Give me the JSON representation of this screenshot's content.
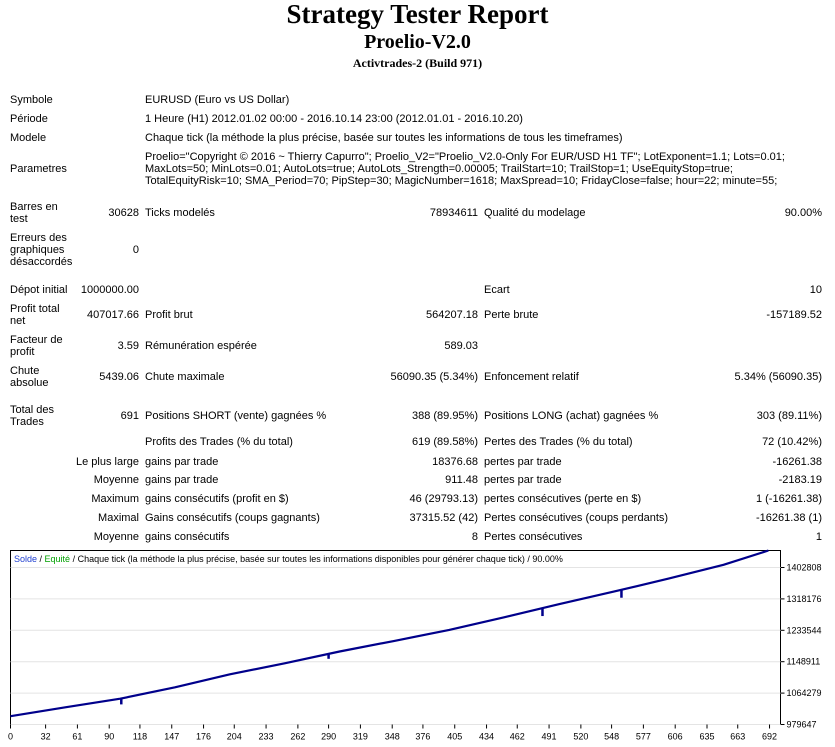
{
  "report": {
    "title": "Strategy Tester Report",
    "expert": "Proelio-V2.0",
    "server": "Activtrades-2 (Build 971)"
  },
  "rows": {
    "symbol": {
      "label": "Symbole",
      "value": "EURUSD (Euro vs US Dollar)"
    },
    "period": {
      "label": "Période",
      "value": "1 Heure (H1) 2012.01.02 00:00 - 2016.10.14 23:00 (2012.01.01 - 2016.10.20)"
    },
    "model": {
      "label": "Modele",
      "value": "Chaque tick (la méthode la plus précise, basée sur toutes les informations de tous les timeframes)"
    },
    "params": {
      "label": "Parametres",
      "value": "Proelio=\"Copyright © 2016 ~ Thierry Capurro\"; Proelio_V2=\"Proelio_V2.0-Only For EUR/USD H1 TF\"; LotExponent=1.1; Lots=0.01; MaxLots=50; MinLots=0.01; AutoLots=true; AutoLots_Strength=0.00005; TrailStart=10; TrailStop=1; UseEquityStop=true; TotalEquityRisk=10; SMA_Period=70; PipStep=30; MagicNumber=1618; MaxSpread=10; FridayClose=false; hour=22; minute=55;"
    },
    "bars": {
      "label": "Barres en test",
      "value": "30628"
    },
    "ticks": {
      "label": "Ticks modelés",
      "value": "78934611"
    },
    "quality": {
      "label": "Qualité du modelage",
      "value": "90.00%"
    },
    "mismatch": {
      "label": "Erreurs des graphiques désaccordés",
      "value": "0"
    },
    "deposit": {
      "label": "Dépot initial",
      "value": "1000000.00"
    },
    "spread": {
      "label": "Ecart",
      "value": "10"
    },
    "net_profit": {
      "label": "Profit total net",
      "value": "407017.66"
    },
    "gross_profit": {
      "label": "Profit brut",
      "value": "564207.18"
    },
    "gross_loss": {
      "label": "Perte brute",
      "value": "-157189.52"
    },
    "profit_factor": {
      "label": "Facteur de profit",
      "value": "3.59"
    },
    "expected_payoff": {
      "label": "Rémunération espérée",
      "value": "589.03"
    },
    "abs_drawdown": {
      "label": "Chute absolue",
      "value": "5439.06"
    },
    "max_drawdown": {
      "label": "Chute maximale",
      "value": "56090.35 (5.34%)"
    },
    "rel_drawdown": {
      "label": "Enfoncement relatif",
      "value": "5.34% (56090.35)"
    },
    "total_trades": {
      "label": "Total des Trades",
      "value": "691"
    },
    "short_pos": {
      "label": "Positions SHORT (vente) gagnées %",
      "value": "388 (89.95%)"
    },
    "long_pos": {
      "label": "Positions LONG (achat) gagnées %",
      "value": "303 (89.11%)"
    },
    "profit_trades": {
      "label": "Profits des Trades (% du total)",
      "value": "619 (89.58%)"
    },
    "loss_trades": {
      "label": "Pertes des Trades (% du total)",
      "value": "72 (10.42%)"
    },
    "largest": {
      "label": "Le plus large",
      "mid_label": "gains par trade",
      "mid_value": "18376.68",
      "right_label": "pertes par trade",
      "right_value": "-16261.38"
    },
    "average": {
      "label": "Moyenne",
      "mid_label": "gains par trade",
      "mid_value": "911.48",
      "right_label": "pertes par trade",
      "right_value": "-2183.19"
    },
    "maximum": {
      "label": "Maximum",
      "mid_label": "gains consécutifs (profit en $)",
      "mid_value": "46 (29793.13)",
      "right_label": "pertes consécutives (perte en $)",
      "right_value": "1 (-16261.38)"
    },
    "maximal": {
      "label": "Maximal",
      "mid_label": "Gains consécutifs (coups gagnants)",
      "mid_value": "37315.52 (42)",
      "right_label": "Pertes consécutives (coups perdants)",
      "right_value": "-16261.38 (1)"
    },
    "average2": {
      "label": "Moyenne",
      "mid_label": "gains consécutifs",
      "mid_value": "8",
      "right_label": "Pertes consécutives",
      "right_value": "1"
    }
  },
  "chart_legend": {
    "balance": "Solde",
    "sep": " / ",
    "equity": "Equité",
    "desc": " / Chaque tick (la méthode la plus précise, basée sur toutes les informations disponibles pour générer chaque tick) / 90.00%"
  },
  "chart_data": {
    "type": "line",
    "title": "",
    "x_ticks": [
      "0",
      "32",
      "61",
      "90",
      "118",
      "147",
      "176",
      "204",
      "233",
      "262",
      "290",
      "319",
      "348",
      "376",
      "405",
      "434",
      "462",
      "491",
      "520",
      "548",
      "577",
      "606",
      "635",
      "663",
      "692"
    ],
    "y_ticks": [
      "1402808",
      "1318176",
      "1233544",
      "1148911",
      "1064279",
      "979647"
    ],
    "xlim": [
      0,
      702
    ],
    "ylim": [
      979647,
      1407000
    ],
    "series": [
      {
        "name": "Solde",
        "color": "#00008b",
        "x": [
          0,
          50,
          100,
          150,
          200,
          250,
          300,
          350,
          400,
          450,
          500,
          550,
          600,
          650,
          691
        ],
        "y": [
          1000000,
          1022000,
          1043000,
          1071000,
          1103000,
          1130000,
          1159000,
          1185000,
          1212000,
          1243000,
          1275000,
          1306000,
          1338000,
          1372000,
          1407000
        ]
      }
    ],
    "equity_dips": [
      {
        "x": 101,
        "y": 1029000
      },
      {
        "x": 290,
        "y": 1141000
      },
      {
        "x": 485,
        "y": 1246000
      },
      {
        "x": 557,
        "y": 1291000
      }
    ],
    "colors": {
      "balance": "#00008b",
      "equity": "#00a000",
      "frame": "#000000"
    }
  }
}
